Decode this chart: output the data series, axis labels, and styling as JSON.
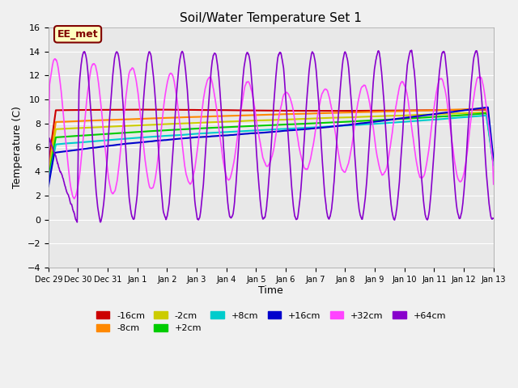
{
  "title": "Soil/Water Temperature Set 1",
  "xlabel": "Time",
  "ylabel": "Temperature (C)",
  "ylim": [
    -4,
    16
  ],
  "xlim_days": 15,
  "background_color": "#e8e8e8",
  "plot_bg": "#e8e8e8",
  "annotation_text": "EE_met",
  "annotation_bg": "#ffffc0",
  "annotation_border": "#800000",
  "tick_labels": [
    "Dec 29",
    "Dec 30",
    "Dec 31",
    "Jan 1",
    "Jan 2",
    "Jan 3",
    "Jan 4",
    "Jan 5",
    "Jan 6",
    "Jan 7",
    "Jan 8",
    "Jan 9",
    "Jan 10",
    "Jan 11",
    "Jan 12",
    "Jan 13"
  ],
  "series": {
    "-16cm": {
      "color": "#cc0000",
      "lw": 1.5
    },
    "-8cm": {
      "color": "#ff8800",
      "lw": 1.5
    },
    "-2cm": {
      "color": "#cccc00",
      "lw": 1.5
    },
    "+2cm": {
      "color": "#00cc00",
      "lw": 1.5
    },
    "+8cm": {
      "color": "#00cccc",
      "lw": 1.5
    },
    "+16cm": {
      "color": "#0000cc",
      "lw": 1.5
    },
    "+32cm": {
      "color": "#ff44ff",
      "lw": 1.2
    },
    "+64cm": {
      "color": "#8800cc",
      "lw": 1.2
    }
  },
  "legend_order": [
    "-16cm",
    "-8cm",
    "-2cm",
    "+2cm",
    "+8cm",
    "+16cm",
    "+32cm",
    "+64cm"
  ]
}
